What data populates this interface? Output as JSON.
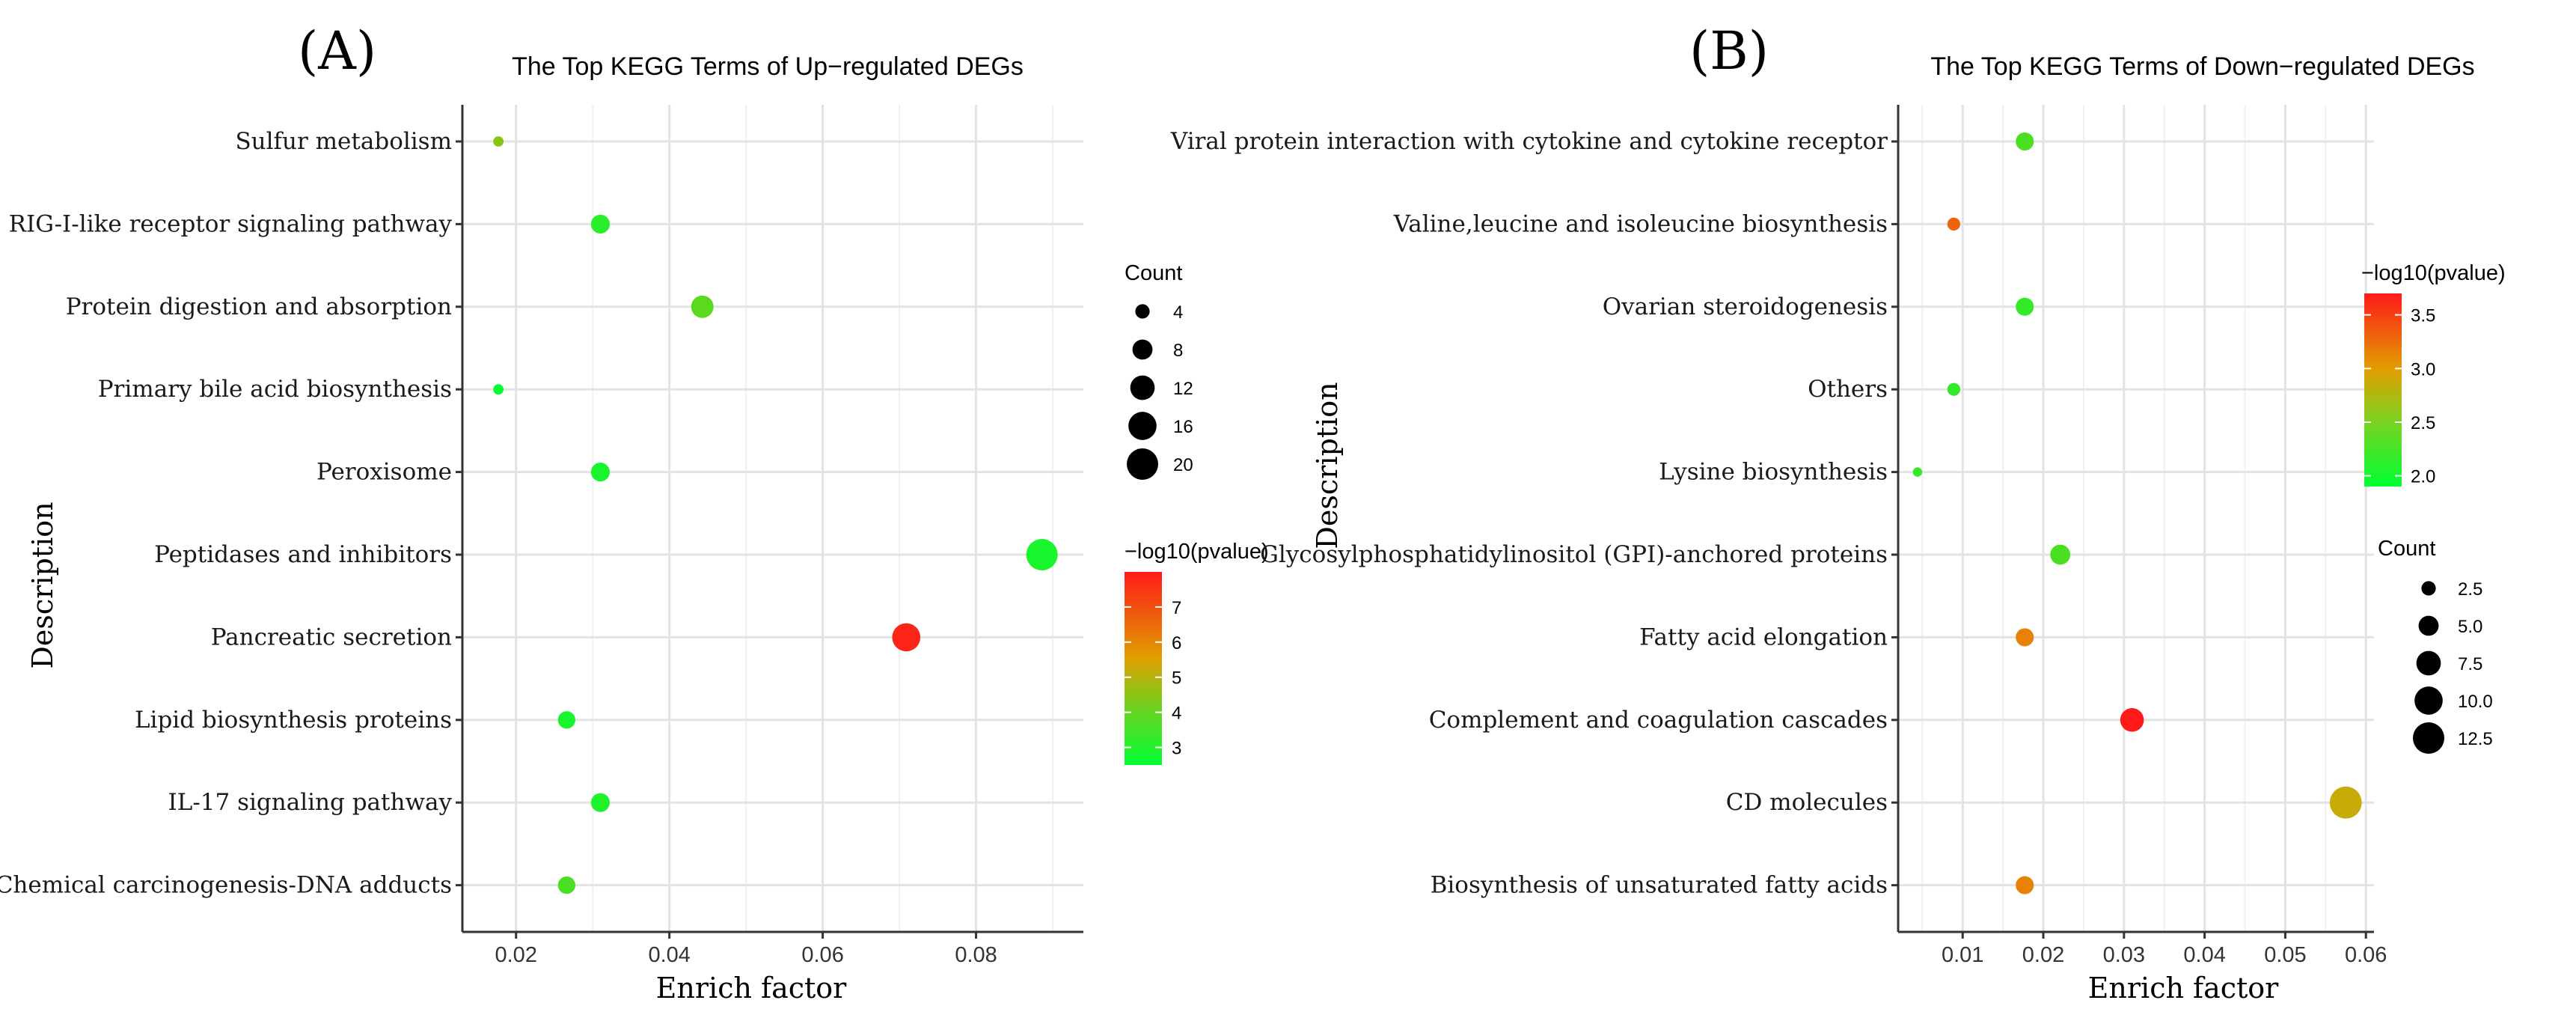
{
  "chart_data": [
    {
      "panel": "(A)",
      "type": "scatter",
      "title": "The Top KEGG Terms of Up−regulated DEGs",
      "xlabel": "Enrich factor",
      "ylabel": "Description",
      "xlim": [
        0.013,
        0.094
      ],
      "xticks": [
        0.02,
        0.04,
        0.06,
        0.08
      ],
      "xtick_labels": [
        "0.02",
        "0.04",
        "0.06",
        "0.08"
      ],
      "categories": [
        "Sulfur metabolism",
        "RIG-I-like receptor signaling pathway",
        "Protein digestion and absorption",
        "Primary bile acid biosynthesis",
        "Peroxisome",
        "Peptidases and inhibitors",
        "Pancreatic secretion",
        "Lipid biosynthesis proteins",
        "IL-17 signaling pathway",
        "Chemical carcinogenesis-DNA adducts"
      ],
      "enrich_factor": [
        0.0177,
        0.031,
        0.0443,
        0.0177,
        0.031,
        0.0886,
        0.0709,
        0.0266,
        0.031,
        0.0266
      ],
      "count": [
        2,
        7,
        10,
        2,
        7,
        20,
        16,
        6,
        7,
        6
      ],
      "neg_log10_pvalue": [
        4.2,
        3.0,
        3.6,
        2.6,
        2.8,
        2.8,
        7.8,
        2.8,
        2.9,
        3.4
      ],
      "size_legend": {
        "title": "Count",
        "values": [
          4,
          8,
          12,
          16,
          20
        ],
        "labels": [
          "4",
          "8",
          "12",
          "16",
          "20"
        ]
      },
      "color_legend": {
        "title": "−log10(pvalue)",
        "min": 2.5,
        "max": 8.0,
        "ticks": [
          3,
          4,
          5,
          6,
          7
        ],
        "labels": [
          "3",
          "4",
          "5",
          "6",
          "7"
        ],
        "low_color": "#00ff33",
        "mid_color": "#e0a000",
        "high_color": "#ff1a1a"
      }
    },
    {
      "panel": "(B)",
      "type": "scatter",
      "title": "The Top KEGG Terms of Down−regulated DEGs",
      "xlabel": "Enrich factor",
      "ylabel": "Description",
      "xlim": [
        0.002,
        0.061
      ],
      "xticks": [
        0.01,
        0.02,
        0.03,
        0.04,
        0.05,
        0.06
      ],
      "xtick_labels": [
        "0.01",
        "0.02",
        "0.03",
        "0.04",
        "0.05",
        "0.06"
      ],
      "categories": [
        "Viral protein interaction with cytokine and cytokine receptor",
        "Valine,leucine and isoleucine biosynthesis",
        "Ovarian steroidogenesis",
        "Others",
        "Lysine biosynthesis",
        "Glycosylphosphatidylinositol (GPI)-anchored proteins",
        "Fatty acid elongation",
        "Complement and coagulation cascades",
        "CD molecules",
        "Biosynthesis of unsaturated fatty acids"
      ],
      "enrich_factor": [
        0.0177,
        0.0089,
        0.0177,
        0.0089,
        0.0044,
        0.0221,
        0.0177,
        0.031,
        0.0575,
        0.0177
      ],
      "count": [
        4,
        2,
        4,
        2,
        1,
        5,
        4,
        7,
        13,
        4
      ],
      "neg_log10_pvalue": [
        2.2,
        3.2,
        2.1,
        2.1,
        2.1,
        2.2,
        3.0,
        3.7,
        2.7,
        3.0
      ],
      "size_legend": {
        "title": "Count",
        "values": [
          2.5,
          5.0,
          7.5,
          10.0,
          12.5
        ],
        "labels": [
          "2.5",
          "5.0",
          "7.5",
          "10.0",
          "12.5"
        ]
      },
      "color_legend": {
        "title": "−log10(pvalue)",
        "min": 1.9,
        "max": 3.7,
        "ticks": [
          2.0,
          2.5,
          3.0,
          3.5
        ],
        "labels": [
          "2.0",
          "2.5",
          "3.0",
          "3.5"
        ],
        "low_color": "#00ff33",
        "mid_color": "#e0a000",
        "high_color": "#ff1a1a"
      }
    }
  ]
}
